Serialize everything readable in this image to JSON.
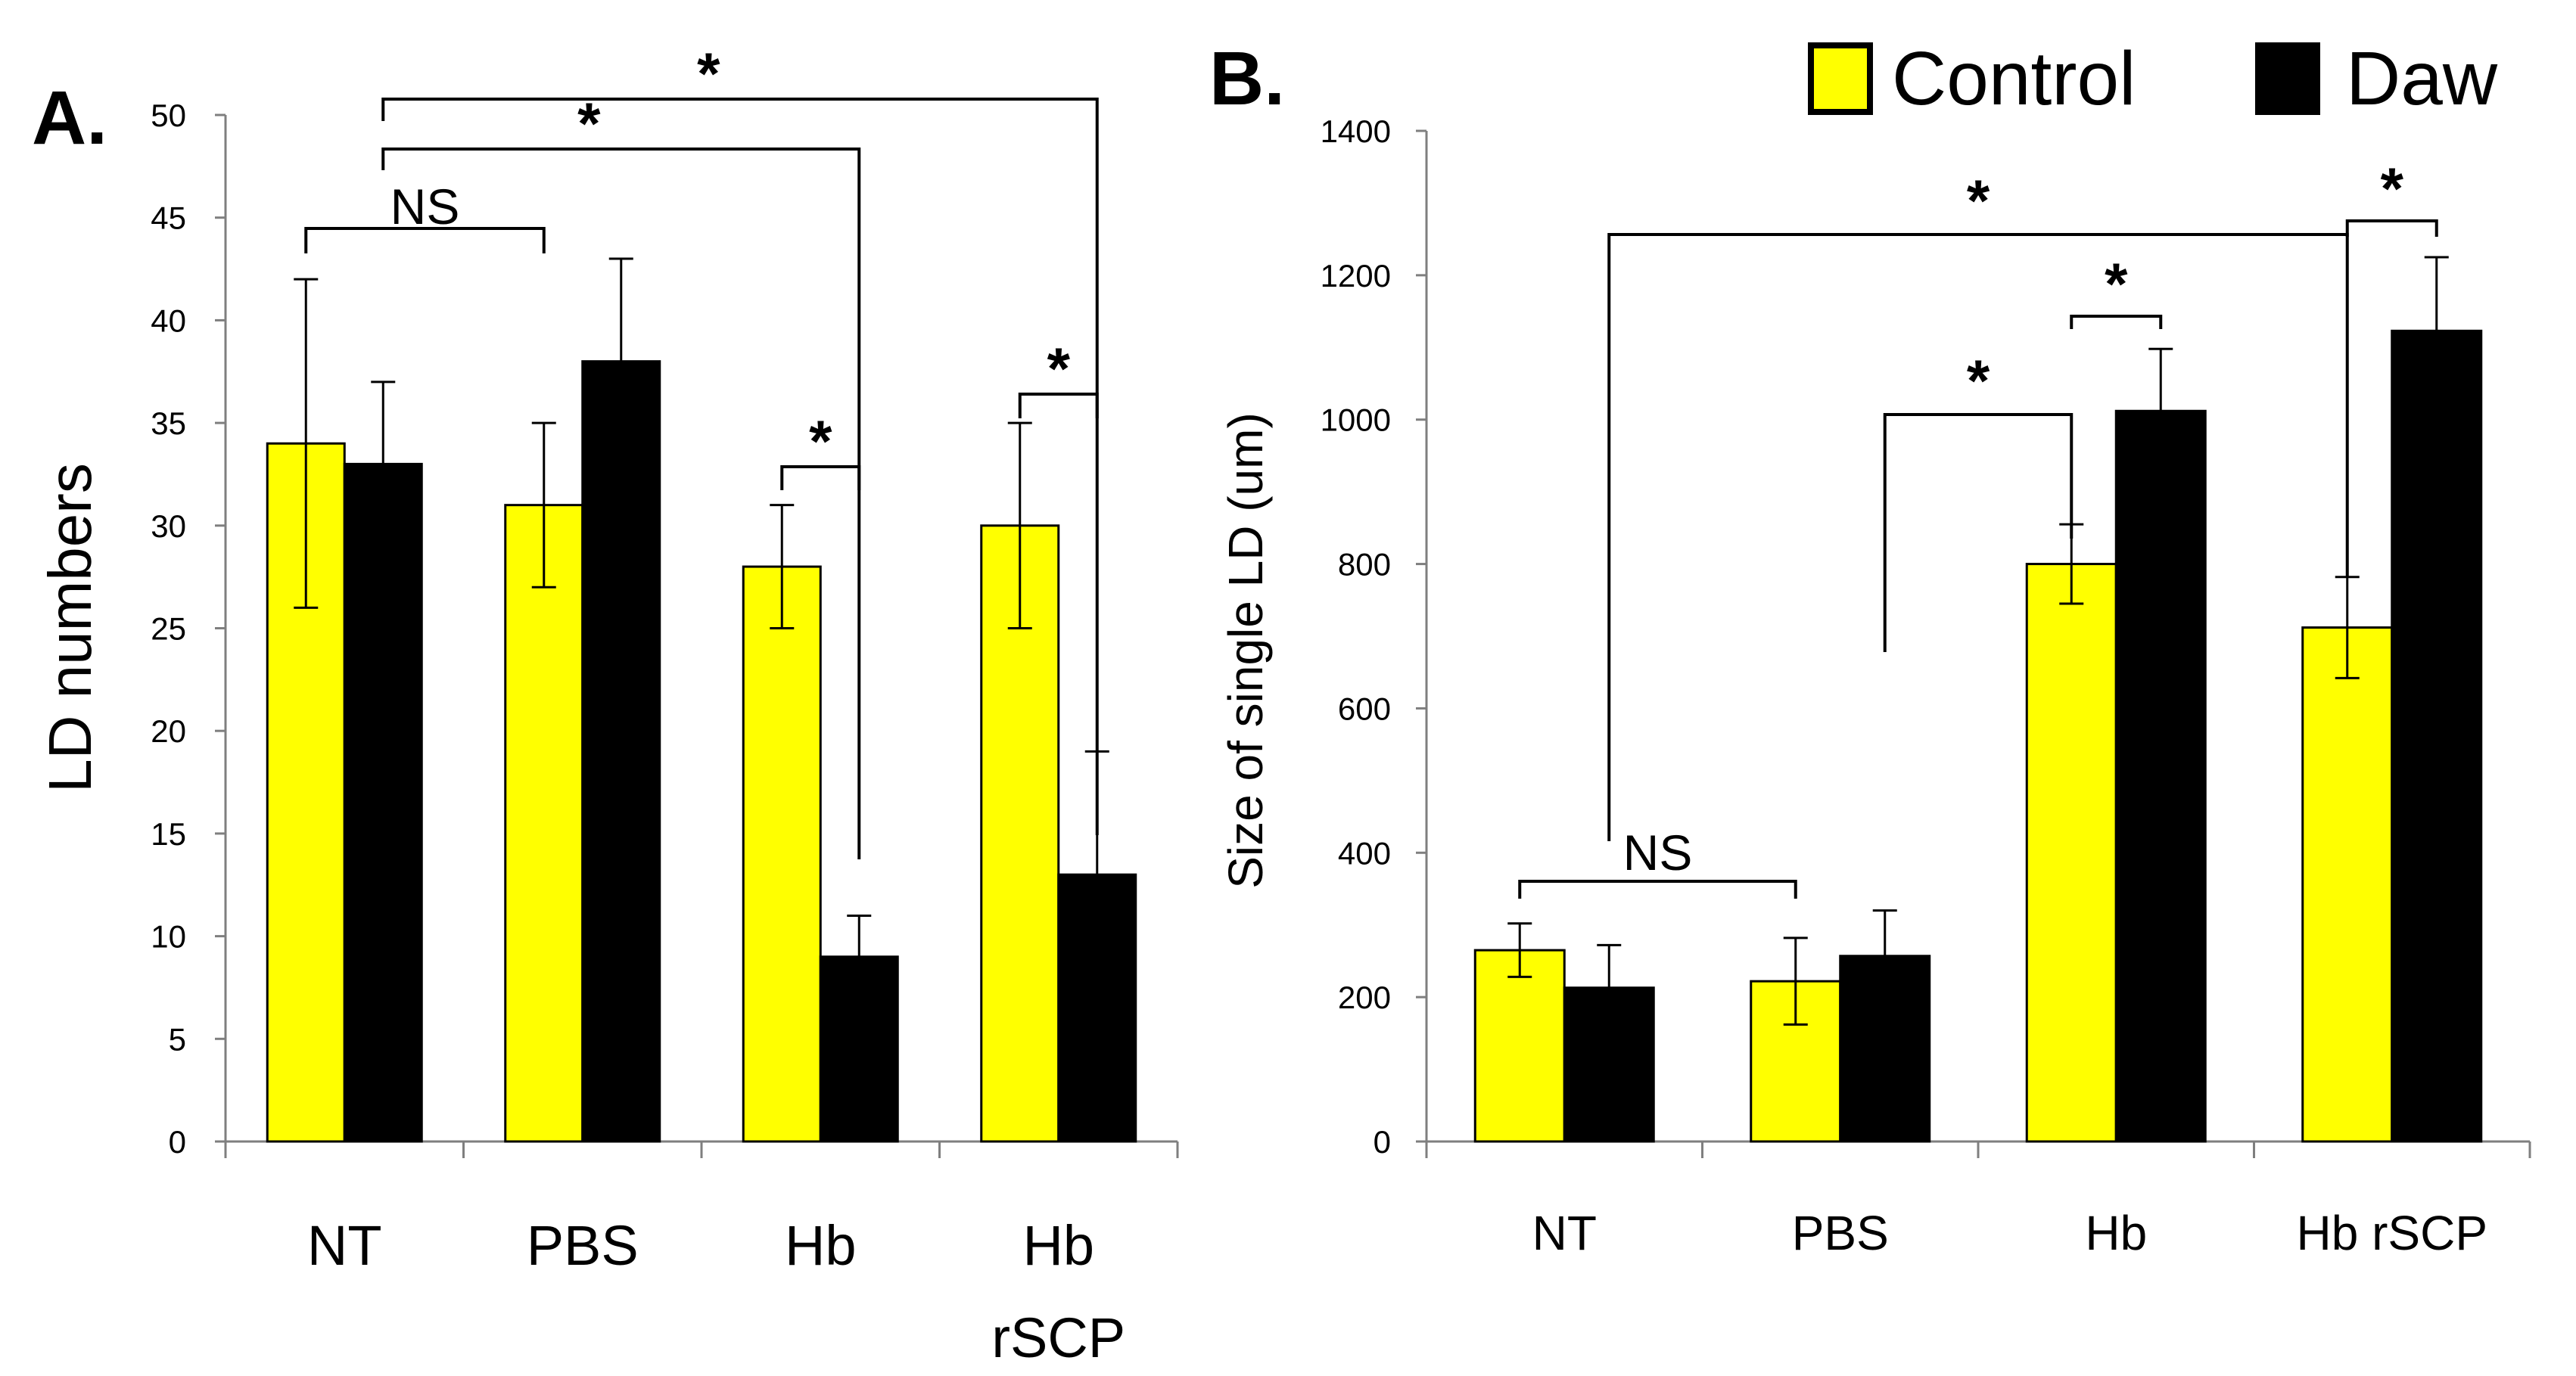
{
  "colors": {
    "control": "#ffff00",
    "daw": "#000000"
  },
  "legend": [
    {
      "key": "control",
      "label": "Control"
    },
    {
      "key": "daw",
      "label": "Daw"
    }
  ],
  "chart_data": [
    {
      "id": "A",
      "panel_label": "A.",
      "type": "bar",
      "ylabel": "LD numbers",
      "ylim": [
        0,
        50
      ],
      "yticks": [
        0,
        5,
        10,
        15,
        20,
        25,
        30,
        35,
        40,
        45,
        50
      ],
      "categories": [
        {
          "name": "NT",
          "lines": [
            "NT"
          ]
        },
        {
          "name": "PBS",
          "lines": [
            "PBS"
          ]
        },
        {
          "name": "Hb",
          "lines": [
            "Hb"
          ]
        },
        {
          "name": "Hb rSCP",
          "lines": [
            "Hb",
            "rSCP"
          ]
        }
      ],
      "series": [
        {
          "name": "Control",
          "key": "control",
          "values": [
            34,
            31,
            28,
            30
          ],
          "err_upper": [
            42,
            35,
            31,
            35
          ],
          "err_lower": [
            26,
            27,
            25,
            25
          ]
        },
        {
          "name": "Daw",
          "key": "daw",
          "values": [
            33,
            38,
            9,
            13
          ],
          "err_upper": [
            37,
            43,
            11,
            19
          ],
          "err_lower": [
            33,
            38,
            9,
            13
          ]
        }
      ],
      "annotations": [
        {
          "label": "NS",
          "kind": "ns",
          "from": [
            0,
            0
          ],
          "to": [
            1,
            0
          ]
        },
        {
          "label": "*",
          "kind": "star",
          "from": [
            2,
            0
          ],
          "to": [
            2,
            1
          ]
        },
        {
          "label": "*",
          "kind": "star",
          "from": [
            3,
            0
          ],
          "to": [
            3,
            1
          ]
        },
        {
          "label": "*",
          "kind": "star",
          "from": [
            0,
            1
          ],
          "to": [
            2,
            1
          ]
        },
        {
          "label": "*",
          "kind": "star",
          "from": [
            0,
            1
          ],
          "to": [
            3,
            1
          ]
        }
      ]
    },
    {
      "id": "B",
      "panel_label": "B.",
      "type": "bar",
      "ylabel": "Size of single LD (um)",
      "ylim": [
        0,
        1400
      ],
      "yticks": [
        0,
        200,
        400,
        600,
        800,
        1000,
        1200,
        1400
      ],
      "categories": [
        {
          "name": "NT",
          "lines": [
            "NT"
          ]
        },
        {
          "name": "PBS",
          "lines": [
            "PBS"
          ]
        },
        {
          "name": "Hb",
          "lines": [
            "Hb"
          ]
        },
        {
          "name": "Hb rSCP",
          "lines": [
            "Hb rSCP"
          ]
        }
      ],
      "series": [
        {
          "name": "Control",
          "key": "control",
          "values": [
            265,
            222,
            800,
            712
          ],
          "err_upper": [
            302,
            282,
            855,
            782
          ],
          "err_lower": [
            228,
            162,
            745,
            642
          ]
        },
        {
          "name": "Daw",
          "key": "daw",
          "values": [
            213,
            257,
            1012,
            1123
          ],
          "err_upper": [
            272,
            320,
            1098,
            1225
          ],
          "err_lower": [
            213,
            257,
            1012,
            1123
          ]
        }
      ],
      "annotations": [
        {
          "label": "NS",
          "kind": "ns",
          "from": [
            0,
            0
          ],
          "to": [
            1,
            0
          ]
        },
        {
          "label": "*",
          "kind": "star",
          "from": [
            1,
            1
          ],
          "to": [
            2,
            0
          ]
        },
        {
          "label": "*",
          "kind": "star",
          "from": [
            2,
            0
          ],
          "to": [
            2,
            1
          ]
        },
        {
          "label": "*",
          "kind": "star",
          "from": [
            0,
            1
          ],
          "to": [
            3,
            0
          ]
        },
        {
          "label": "*",
          "kind": "star",
          "from": [
            3,
            0
          ],
          "to": [
            3,
            1
          ]
        }
      ]
    }
  ]
}
